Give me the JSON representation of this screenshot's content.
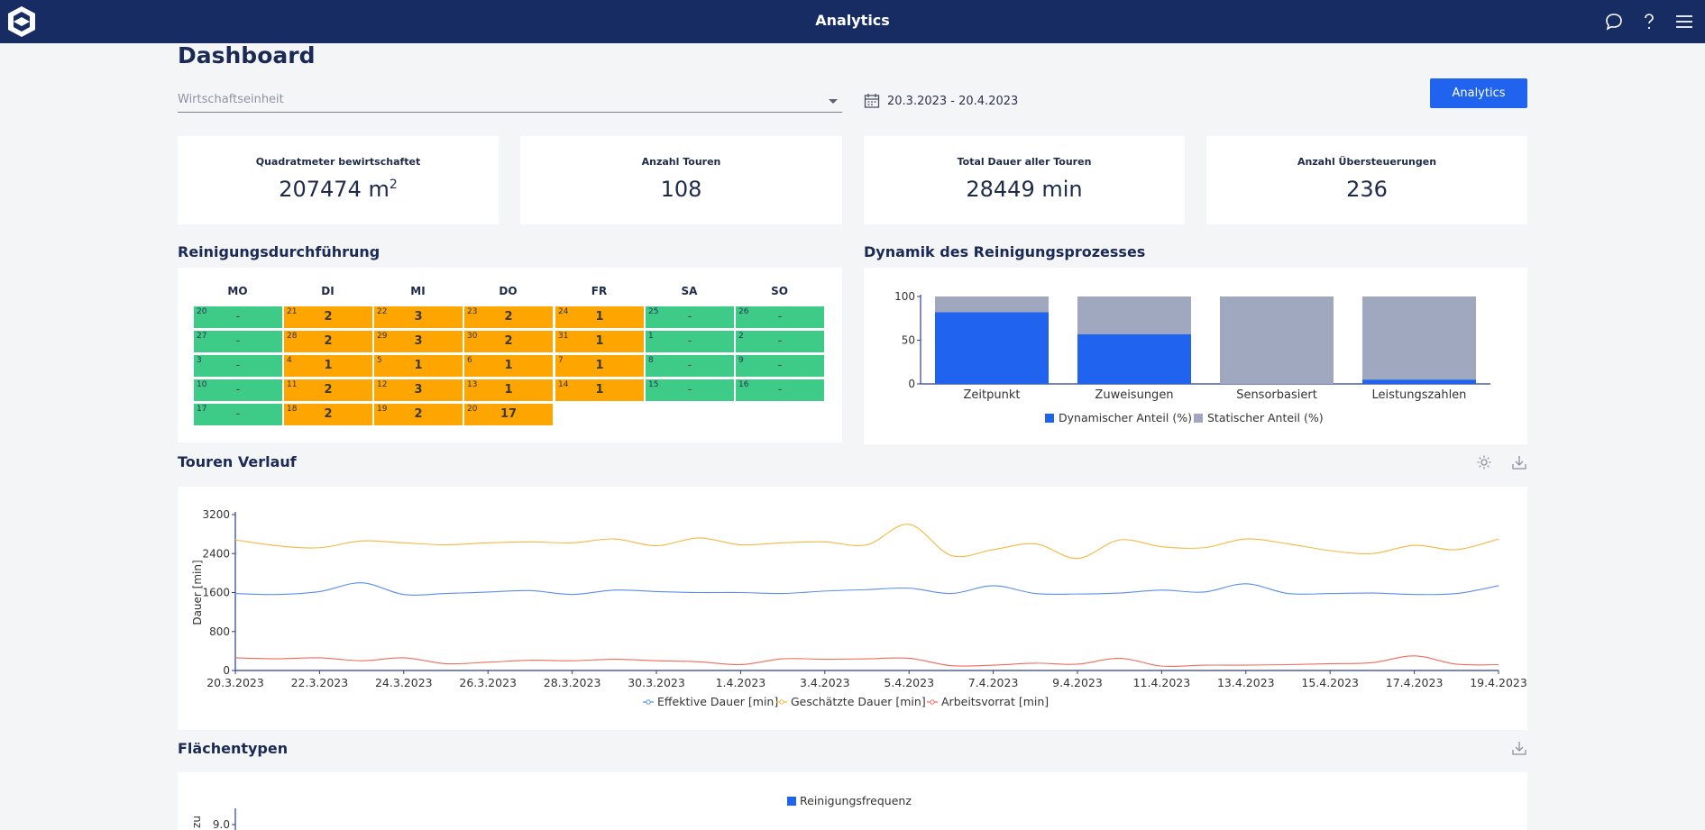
{
  "app": {
    "title": "Analytics"
  },
  "page": {
    "title": "Dashboard"
  },
  "filters": {
    "unit_placeholder": "Wirtschaftseinheit",
    "date_range": "20.3.2023 - 20.4.2023",
    "analytics_button": "Analytics"
  },
  "kpis": [
    {
      "label": "Quadratmeter bewirtschaftet",
      "value": "207474 m",
      "unit_sup": "2"
    },
    {
      "label": "Anzahl Touren",
      "value": "108"
    },
    {
      "label": "Total Dauer aller Touren",
      "value": "28449 min"
    },
    {
      "label": "Anzahl Übersteuerungen",
      "value": "236"
    }
  ],
  "calendar": {
    "title": "Reinigungsdurchführung",
    "weekdays": [
      "MO",
      "DI",
      "MI",
      "DO",
      "FR",
      "SA",
      "SO"
    ],
    "rows": [
      [
        {
          "day": "20",
          "value": "-",
          "status": "green"
        },
        {
          "day": "21",
          "value": "2",
          "status": "orange"
        },
        {
          "day": "22",
          "value": "3",
          "status": "orange"
        },
        {
          "day": "23",
          "value": "2",
          "status": "orange"
        },
        {
          "day": "24",
          "value": "1",
          "status": "orange"
        },
        {
          "day": "25",
          "value": "-",
          "status": "green"
        },
        {
          "day": "26",
          "value": "-",
          "status": "green"
        }
      ],
      [
        {
          "day": "27",
          "value": "-",
          "status": "green"
        },
        {
          "day": "28",
          "value": "2",
          "status": "orange"
        },
        {
          "day": "29",
          "value": "3",
          "status": "orange"
        },
        {
          "day": "30",
          "value": "2",
          "status": "orange"
        },
        {
          "day": "31",
          "value": "1",
          "status": "orange"
        },
        {
          "day": "1",
          "value": "-",
          "status": "green"
        },
        {
          "day": "2",
          "value": "-",
          "status": "green"
        }
      ],
      [
        {
          "day": "3",
          "value": "-",
          "status": "green"
        },
        {
          "day": "4",
          "value": "1",
          "status": "orange"
        },
        {
          "day": "5",
          "value": "1",
          "status": "orange"
        },
        {
          "day": "6",
          "value": "1",
          "status": "orange"
        },
        {
          "day": "7",
          "value": "1",
          "status": "orange"
        },
        {
          "day": "8",
          "value": "-",
          "status": "green"
        },
        {
          "day": "9",
          "value": "-",
          "status": "green"
        }
      ],
      [
        {
          "day": "10",
          "value": "-",
          "status": "green"
        },
        {
          "day": "11",
          "value": "2",
          "status": "orange"
        },
        {
          "day": "12",
          "value": "3",
          "status": "orange"
        },
        {
          "day": "13",
          "value": "1",
          "status": "orange"
        },
        {
          "day": "14",
          "value": "1",
          "status": "orange"
        },
        {
          "day": "15",
          "value": "-",
          "status": "green"
        },
        {
          "day": "16",
          "value": "-",
          "status": "green"
        }
      ],
      [
        {
          "day": "17",
          "value": "-",
          "status": "green"
        },
        {
          "day": "18",
          "value": "2",
          "status": "orange"
        },
        {
          "day": "19",
          "value": "2",
          "status": "orange"
        },
        {
          "day": "20",
          "value": "17",
          "status": "orange"
        }
      ]
    ]
  },
  "sections": {
    "dynamics": "Dynamik des Reinigungsprozesses",
    "tours": "Touren Verlauf",
    "areas": "Flächentypen"
  },
  "colors": {
    "primary": "#1f63ee",
    "navy": "#172c63",
    "green": "#3ecb87",
    "orange": "#ffa500",
    "gray_bar": "#a0a8bf",
    "line_blue": "#5b8def",
    "line_orange": "#f5b840",
    "line_red": "#f26b5b"
  },
  "chart_data": [
    {
      "type": "bar",
      "stacked": true,
      "categories": [
        "Zeitpunkt",
        "Zuweisungen",
        "Sensorbasiert",
        "Leistungszahlen"
      ],
      "series": [
        {
          "name": "Dynamischer Anteil (%)",
          "values": [
            82,
            57,
            0,
            5
          ]
        },
        {
          "name": "Statischer Anteil (%)",
          "values": [
            18,
            43,
            100,
            95
          ]
        }
      ],
      "yticks": [
        0,
        50,
        100
      ],
      "ylim": [
        0,
        100
      ]
    },
    {
      "type": "line",
      "ylabel": "Dauer [min]",
      "ylim": [
        0,
        3200
      ],
      "yticks": [
        0,
        800,
        1600,
        2400,
        3200
      ],
      "x_labels": [
        "20.3.2023",
        "22.3.2023",
        "24.3.2023",
        "26.3.2023",
        "28.3.2023",
        "30.3.2023",
        "1.4.2023",
        "3.4.2023",
        "5.4.2023",
        "7.4.2023",
        "9.4.2023",
        "11.4.2023",
        "13.4.2023",
        "15.4.2023",
        "17.4.2023",
        "19.4.2023"
      ],
      "series": [
        {
          "name": "Effektive Dauer [min]",
          "color": "#5b8def",
          "values": [
            1580,
            1560,
            1620,
            1800,
            1560,
            1580,
            1610,
            1640,
            1560,
            1650,
            1620,
            1600,
            1600,
            1580,
            1630,
            1660,
            1690,
            1580,
            1740,
            1580,
            1570,
            1590,
            1650,
            1610,
            1780,
            1580,
            1580,
            1590,
            1560,
            1580,
            1740
          ]
        },
        {
          "name": "Geschätzte Dauer [min]",
          "color": "#f5b840",
          "values": [
            2680,
            2560,
            2520,
            2660,
            2620,
            2580,
            2620,
            2640,
            2620,
            2700,
            2560,
            2720,
            2580,
            2620,
            2640,
            2580,
            3000,
            2360,
            2480,
            2600,
            2300,
            2680,
            2540,
            2520,
            2700,
            2600,
            2460,
            2400,
            2570,
            2480,
            2700
          ]
        },
        {
          "name": "Arbeitsvorrat [min]",
          "color": "#f26b5b",
          "values": [
            260,
            240,
            260,
            200,
            260,
            140,
            170,
            210,
            200,
            230,
            200,
            180,
            120,
            240,
            230,
            240,
            250,
            100,
            110,
            150,
            130,
            250,
            90,
            110,
            110,
            120,
            140,
            160,
            300,
            130,
            120
          ]
        }
      ]
    },
    {
      "type": "bar",
      "series": [
        {
          "name": "Reinigungsfrequenz"
        }
      ],
      "ylabel": "nz",
      "yticks": [
        9.0
      ]
    }
  ]
}
